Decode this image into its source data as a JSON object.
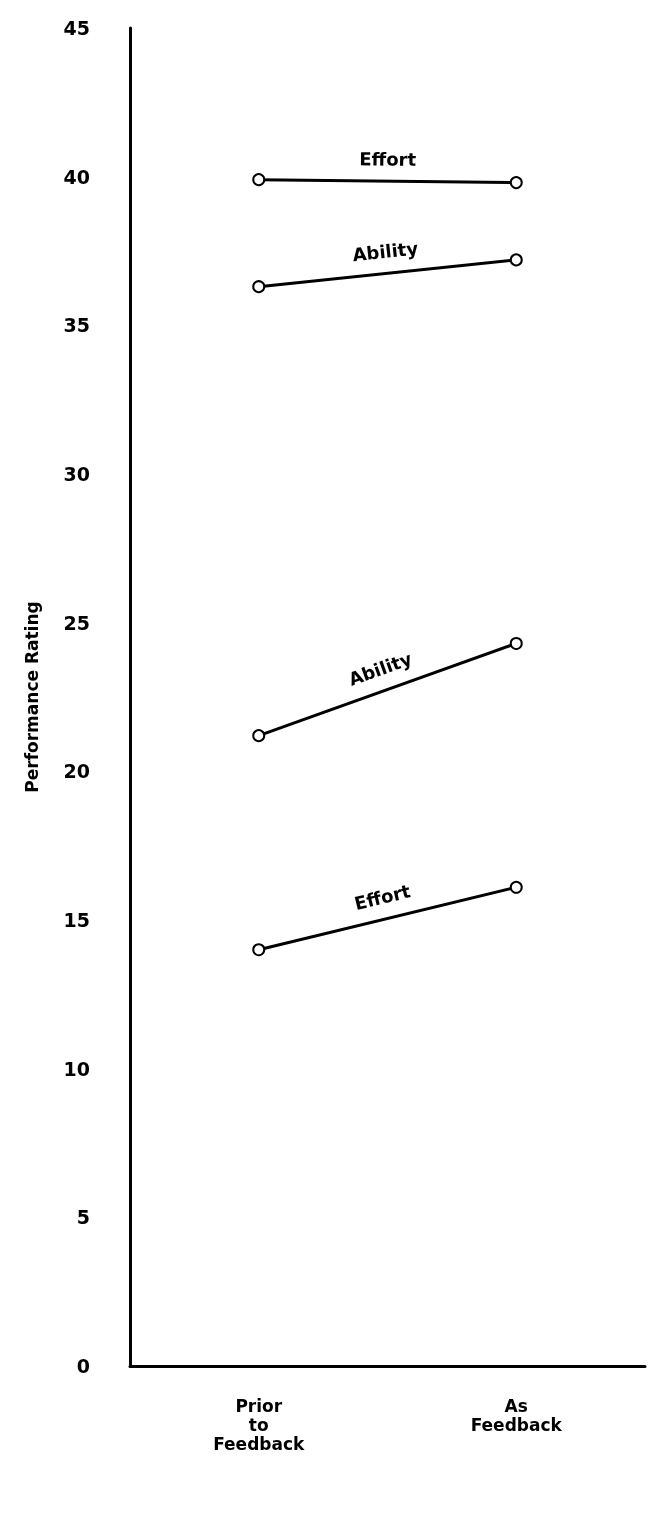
{
  "chart_data": {
    "type": "line",
    "ylabel": "Performance Rating",
    "categories": [
      "Prior\nto\nFeedback",
      "As\nFeedback"
    ],
    "series": [
      {
        "name": "Effort",
        "color": "#000000",
        "values": [
          39.9,
          39.8
        ]
      },
      {
        "name": "Ability",
        "color": "#000000",
        "values": [
          36.3,
          37.2
        ]
      },
      {
        "name": "Ability",
        "color": "#000000",
        "values": [
          21.2,
          24.3
        ]
      },
      {
        "name": "Effort",
        "color": "#000000",
        "values": [
          14.0,
          16.1
        ]
      }
    ],
    "ylim": [
      0,
      45
    ],
    "yticks": [
      0,
      5,
      10,
      15,
      20,
      25,
      30,
      35,
      40,
      45
    ],
    "grid": false,
    "legend": false,
    "marker": "circle",
    "line_style": "solid"
  }
}
